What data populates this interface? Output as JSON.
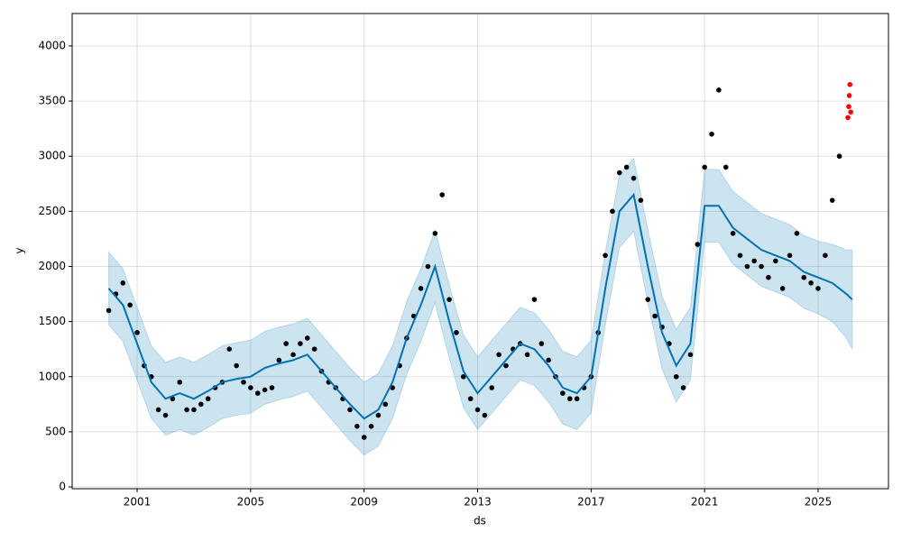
{
  "chart_data": {
    "type": "forecast",
    "x_label": "ds",
    "y_label": "y",
    "xlim": [
      1998.71,
      2027.48
    ],
    "xticks": [
      2001,
      2005,
      2009,
      2013,
      2017,
      2021,
      2025
    ],
    "ylim": [
      -16,
      4294
    ],
    "yticks": [
      0,
      500,
      1000,
      1500,
      2000,
      2500,
      3000,
      3500,
      4000
    ],
    "grid": true,
    "observed": {
      "color": "#000000",
      "x": [
        2000,
        2000.25,
        2000.5,
        2000.75,
        2001,
        2001.25,
        2001.5,
        2001.75,
        2002,
        2002.25,
        2002.5,
        2002.75,
        2003,
        2003.25,
        2003.5,
        2003.75,
        2004,
        2004.25,
        2004.5,
        2004.75,
        2005,
        2005.25,
        2005.5,
        2005.75,
        2006,
        2006.25,
        2006.5,
        2006.75,
        2007,
        2007.25,
        2007.5,
        2007.75,
        2008,
        2008.25,
        2008.5,
        2008.75,
        2009,
        2009.25,
        2009.5,
        2009.75,
        2010,
        2010.25,
        2010.5,
        2010.75,
        2011,
        2011.25,
        2011.5,
        2011.75,
        2012,
        2012.25,
        2012.5,
        2012.75,
        2013,
        2013.25,
        2013.5,
        2013.75,
        2014,
        2014.25,
        2014.5,
        2014.75,
        2015,
        2015.25,
        2015.5,
        2015.75,
        2016,
        2016.25,
        2016.5,
        2016.75,
        2017,
        2017.25,
        2017.5,
        2017.75,
        2018,
        2018.25,
        2018.5,
        2018.75,
        2019,
        2019.25,
        2019.5,
        2019.75,
        2020,
        2020.25,
        2020.5,
        2020.75,
        2021,
        2021.25,
        2021.5,
        2021.75,
        2022,
        2022.25,
        2022.5,
        2022.75,
        2023,
        2023.25,
        2023.5,
        2023.75,
        2024,
        2024.25,
        2024.5,
        2024.75,
        2025,
        2025.25,
        2025.5,
        2025.75
      ],
      "values": [
        1600,
        1750,
        1850,
        1650,
        1400,
        1100,
        1000,
        700,
        650,
        800,
        950,
        700,
        700,
        750,
        800,
        900,
        950,
        1250,
        1100,
        950,
        900,
        850,
        880,
        900,
        1150,
        1300,
        1200,
        1300,
        1350,
        1250,
        1050,
        950,
        900,
        800,
        700,
        550,
        450,
        550,
        650,
        750,
        900,
        1100,
        1350,
        1550,
        1800,
        2000,
        2300,
        2650,
        1700,
        1400,
        1000,
        800,
        700,
        650,
        900,
        1200,
        1100,
        1250,
        1300,
        1200,
        1700,
        1300,
        1150,
        1000,
        850,
        800,
        800,
        900,
        1000,
        1400,
        2100,
        2500,
        2850,
        2900,
        2800,
        2600,
        1700,
        1550,
        1450,
        1300,
        1000,
        900,
        1200,
        2200,
        2900,
        3200,
        3600,
        2900,
        2300,
        2100,
        2000,
        2050,
        2000,
        1900,
        2050,
        1800,
        2100,
        2300,
        1900,
        1850,
        1800,
        2100,
        2600,
        3000
      ]
    },
    "test": {
      "color": "#ff0000",
      "x": [
        2026.05,
        2026.08,
        2026.1,
        2026.12,
        2026.15
      ],
      "values": [
        3350,
        3450,
        3550,
        3650,
        3400
      ]
    },
    "forecast": {
      "color": "#0072b2",
      "x": [
        2000,
        2000.5,
        2001,
        2001.5,
        2002,
        2002.5,
        2003,
        2003.5,
        2004,
        2004.5,
        2005,
        2005.5,
        2006,
        2006.5,
        2007,
        2007.5,
        2008,
        2008.5,
        2009,
        2009.5,
        2010,
        2010.5,
        2011,
        2011.5,
        2012,
        2012.5,
        2013,
        2013.5,
        2014,
        2014.5,
        2015,
        2015.5,
        2016,
        2016.5,
        2017,
        2017.5,
        2018,
        2018.5,
        2019,
        2019.5,
        2020,
        2020.5,
        2021,
        2021.5,
        2022,
        2022.5,
        2023,
        2023.5,
        2024,
        2024.5,
        2025,
        2025.5,
        2026,
        2026.2
      ],
      "yhat": [
        1800,
        1650,
        1300,
        950,
        800,
        850,
        800,
        870,
        950,
        980,
        1000,
        1080,
        1120,
        1150,
        1200,
        1050,
        900,
        750,
        620,
        700,
        950,
        1350,
        1650,
        2000,
        1500,
        1050,
        850,
        1000,
        1150,
        1300,
        1250,
        1100,
        900,
        850,
        1000,
        1800,
        2500,
        2650,
        2000,
        1400,
        1100,
        1300,
        2550,
        2550,
        2350,
        2250,
        2150,
        2100,
        2050,
        1950,
        1900,
        1850,
        1750,
        1700
      ],
      "yhat_lower": [
        1470,
        1320,
        970,
        620,
        470,
        520,
        470,
        540,
        620,
        650,
        670,
        750,
        790,
        820,
        870,
        720,
        570,
        420,
        290,
        370,
        620,
        1020,
        1320,
        1670,
        1170,
        720,
        520,
        670,
        820,
        970,
        920,
        770,
        570,
        520,
        670,
        1470,
        2170,
        2320,
        1670,
        1070,
        770,
        970,
        2220,
        2220,
        2020,
        1920,
        1820,
        1770,
        1720,
        1620,
        1570,
        1500,
        1350,
        1250
      ],
      "yhat_upper": [
        2130,
        1980,
        1630,
        1280,
        1130,
        1180,
        1130,
        1200,
        1280,
        1310,
        1330,
        1410,
        1450,
        1480,
        1530,
        1380,
        1230,
        1080,
        950,
        1030,
        1280,
        1680,
        1980,
        2330,
        1830,
        1380,
        1180,
        1330,
        1480,
        1630,
        1580,
        1430,
        1230,
        1180,
        1330,
        2130,
        2830,
        2980,
        2330,
        1730,
        1430,
        1630,
        2880,
        2880,
        2680,
        2580,
        2480,
        2430,
        2380,
        2280,
        2230,
        2200,
        2150,
        2150
      ]
    }
  }
}
